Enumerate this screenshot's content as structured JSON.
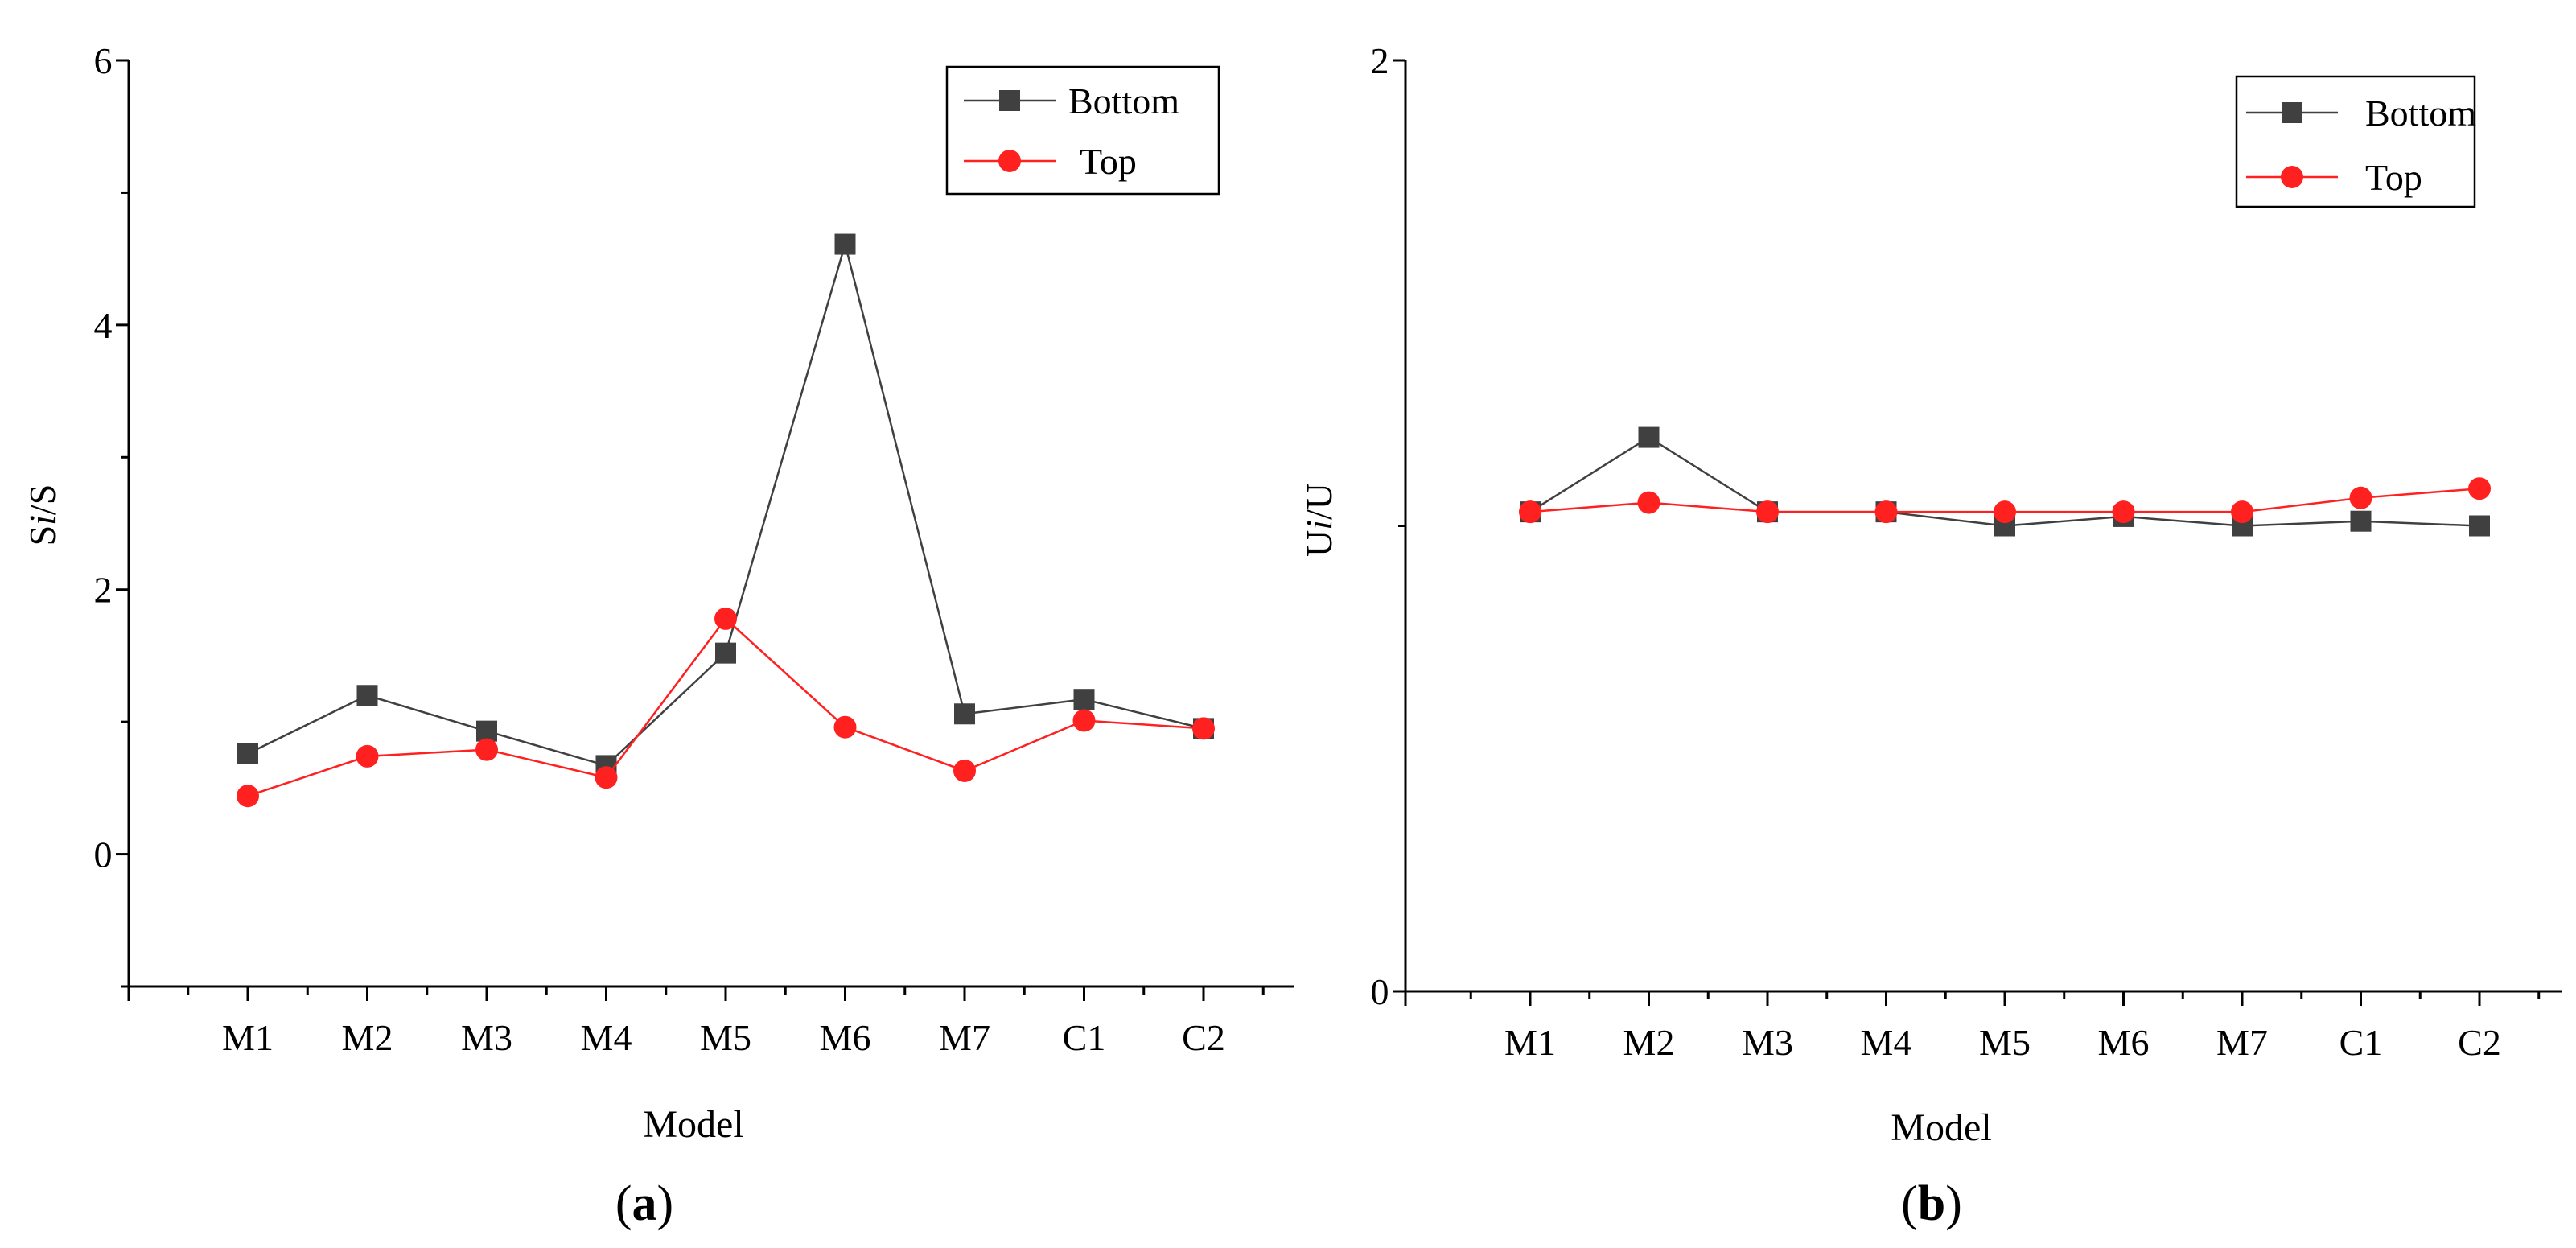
{
  "chart_data": [
    {
      "type": "line",
      "panel_label": "a",
      "xlabel": "Model",
      "ylabel_main": "S",
      "ylabel_sub": "i",
      "ylabel_tail": "/S",
      "categories": [
        "M1",
        "M2",
        "M3",
        "M4",
        "M5",
        "M6",
        "M7",
        "C1",
        "C2"
      ],
      "ylim": [
        -1,
        6
      ],
      "yticks": [
        0,
        2,
        4,
        6
      ],
      "legend_position": "top-right",
      "series": [
        {
          "name": "Bottom",
          "color": "#404040",
          "marker": "square",
          "values": [
            0.76,
            1.2,
            0.93,
            0.67,
            1.52,
            4.61,
            1.06,
            1.17,
            0.95
          ]
        },
        {
          "name": "Top",
          "color": "#ff2020",
          "marker": "circle",
          "values": [
            0.44,
            0.74,
            0.79,
            0.58,
            1.78,
            0.96,
            0.63,
            1.01,
            0.95
          ]
        }
      ]
    },
    {
      "type": "line",
      "panel_label": "b",
      "xlabel": "Model",
      "ylabel_main": "U",
      "ylabel_sub": "i",
      "ylabel_tail": "/U",
      "categories": [
        "M1",
        "M2",
        "M3",
        "M4",
        "M5",
        "M6",
        "M7",
        "C1",
        "C2"
      ],
      "ylim": [
        0,
        2
      ],
      "yticks": [
        0,
        2
      ],
      "legend_position": "top-right",
      "series": [
        {
          "name": "Bottom",
          "color": "#404040",
          "marker": "square",
          "values": [
            1.03,
            1.19,
            1.03,
            1.03,
            1.0,
            1.02,
            1.0,
            1.01,
            1.0
          ]
        },
        {
          "name": "Top",
          "color": "#ff2020",
          "marker": "circle",
          "values": [
            1.03,
            1.05,
            1.03,
            1.03,
            1.03,
            1.03,
            1.03,
            1.06,
            1.08
          ]
        }
      ]
    }
  ]
}
